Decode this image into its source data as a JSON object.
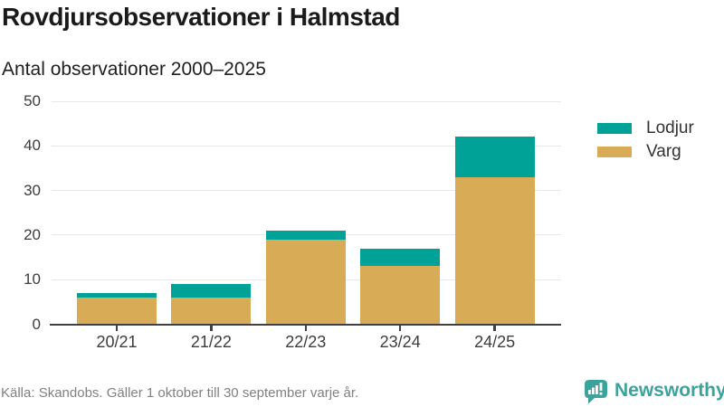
{
  "header": {
    "title": "Rovdjursobservationer i Halmstad",
    "subtitle": "Antal observationer 2000–2025"
  },
  "chart_data": {
    "type": "bar",
    "stacked": true,
    "title": "Rovdjursobservationer i Halmstad",
    "subtitle": "Antal observationer 2000–2025",
    "categories": [
      "20/21",
      "21/22",
      "22/23",
      "23/24",
      "24/25"
    ],
    "series": [
      {
        "name": "Lodjur",
        "color": "#00a196",
        "values": [
          1,
          3,
          2,
          4,
          9
        ]
      },
      {
        "name": "Varg",
        "color": "#d8ab57",
        "values": [
          6,
          6,
          19,
          13,
          33
        ]
      }
    ],
    "stack_order_bottom_to_top": [
      "Varg",
      "Lodjur"
    ],
    "totals": [
      7,
      9,
      21,
      17,
      42
    ],
    "yticks": [
      0,
      10,
      20,
      30,
      40,
      50
    ],
    "ylim": [
      0,
      50
    ],
    "xlabel": "",
    "ylabel": "",
    "grid": "horizontal",
    "legend_position": "right"
  },
  "footer": {
    "source": "Källa: Skandobs. Gäller 1 oktober till 30 september varje år.",
    "brand": "Newsworthy"
  },
  "colors": {
    "lodjur": "#00a196",
    "varg": "#d8ab57",
    "brand_teal": "#3ba29c",
    "axis": "#404040",
    "grid": "#e8e8e8",
    "title_text": "#1a1a1a",
    "label_text": "#3d3d3d",
    "muted_text": "#808080"
  }
}
